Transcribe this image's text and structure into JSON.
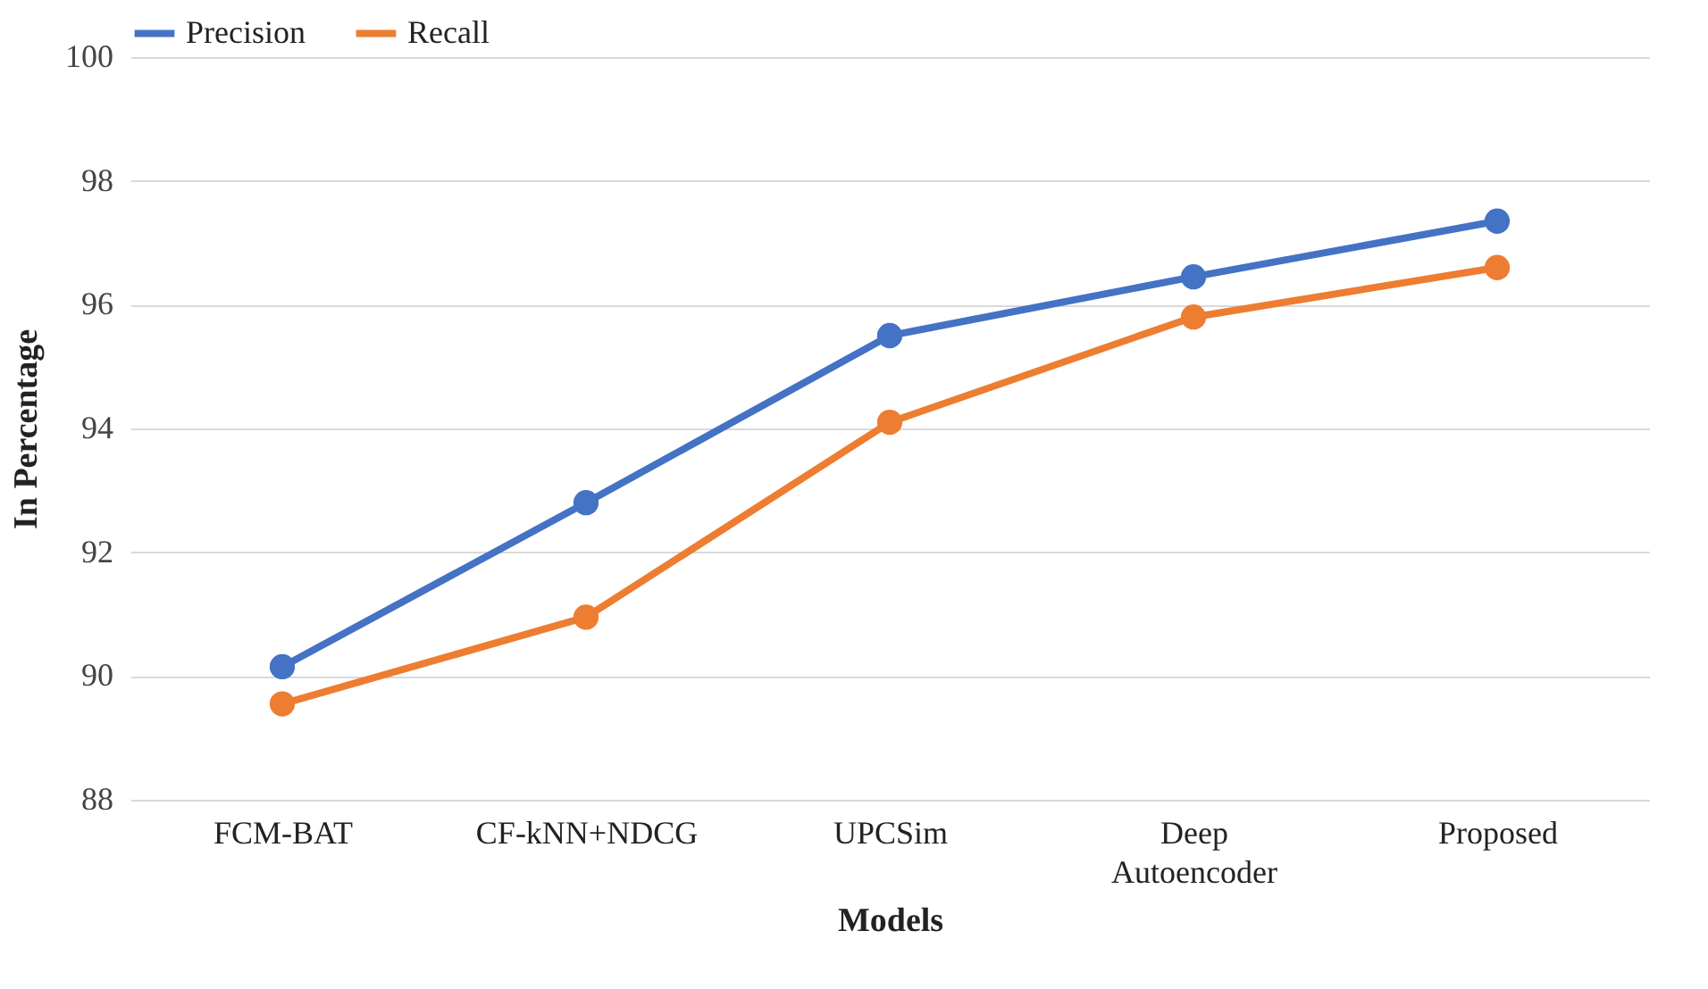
{
  "chart_data": {
    "type": "line",
    "xlabel": "Models",
    "ylabel": "In Percentage",
    "categories": [
      "FCM-BAT",
      "CF-kNN+NDCG",
      "UPCSim",
      "Deep Autoencoder",
      "Proposed"
    ],
    "series": [
      {
        "name": "Precision",
        "color": "#4472c4",
        "values": [
          90.15,
          92.8,
          95.5,
          96.45,
          97.35
        ]
      },
      {
        "name": "Recall",
        "color": "#ed7d31",
        "values": [
          89.55,
          90.95,
          94.1,
          95.8,
          96.6
        ]
      }
    ],
    "ylim": [
      88,
      100
    ],
    "yticks": [
      88,
      90,
      92,
      94,
      96,
      98,
      100
    ],
    "grid": "y",
    "legend": "top",
    "marker": "circle",
    "line_style": "solid"
  }
}
